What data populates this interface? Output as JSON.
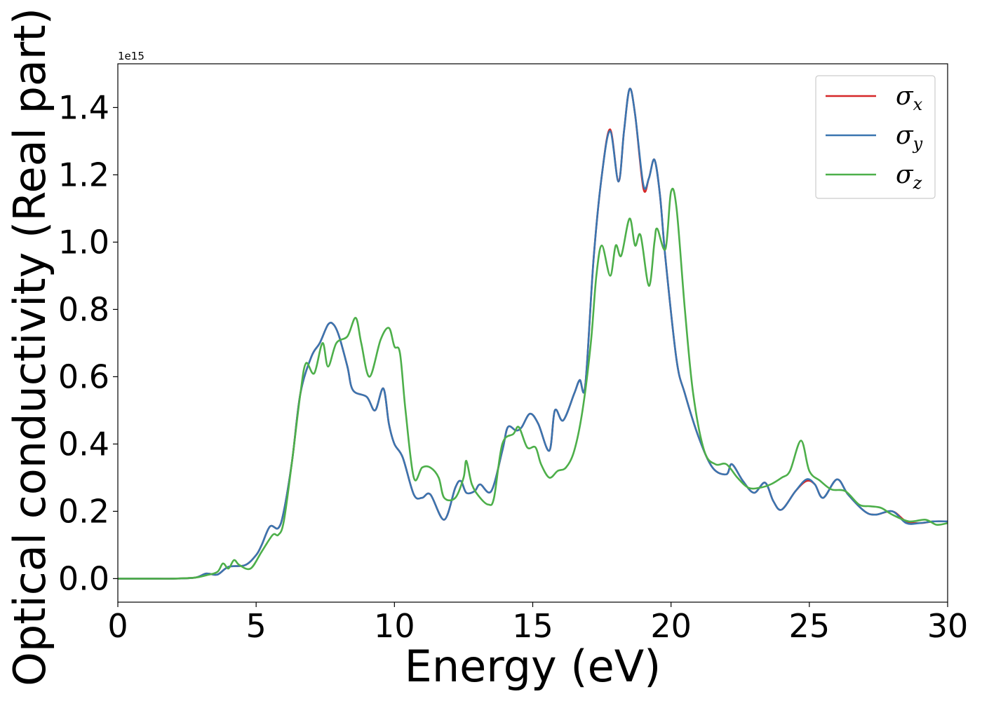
{
  "chart_data": {
    "type": "line",
    "title": "",
    "xlabel": "Energy (eV)",
    "ylabel": "Optical conductivity (Real part)",
    "y_offset_label": "1e15",
    "xlim": [
      0,
      30
    ],
    "ylim": [
      -0.07,
      1.53
    ],
    "x_ticks": [
      0,
      5,
      10,
      15,
      20,
      25,
      30
    ],
    "x_tick_labels": [
      "0",
      "5",
      "10",
      "15",
      "20",
      "25",
      "30"
    ],
    "y_ticks": [
      0.0,
      0.2,
      0.4,
      0.6,
      0.8,
      1.0,
      1.2,
      1.4
    ],
    "y_tick_labels": [
      "0.0",
      "0.2",
      "0.4",
      "0.6",
      "0.8",
      "1.0",
      "1.2",
      "1.4"
    ],
    "grid": false,
    "legend_position": "top-right",
    "series": [
      {
        "name": "σx",
        "symbol": "σ",
        "subscript": "x",
        "color": "#d62728",
        "points": [
          [
            0,
            0
          ],
          [
            1,
            0
          ],
          [
            2,
            0
          ],
          [
            2.8,
            0.003
          ],
          [
            3.2,
            0.015
          ],
          [
            3.6,
            0.012
          ],
          [
            4.0,
            0.035
          ],
          [
            4.6,
            0.04
          ],
          [
            5.0,
            0.07
          ],
          [
            5.2,
            0.1
          ],
          [
            5.5,
            0.155
          ],
          [
            5.8,
            0.15
          ],
          [
            6.0,
            0.2
          ],
          [
            6.3,
            0.35
          ],
          [
            6.6,
            0.55
          ],
          [
            7.0,
            0.66
          ],
          [
            7.3,
            0.7
          ],
          [
            7.6,
            0.755
          ],
          [
            7.8,
            0.755
          ],
          [
            8.0,
            0.72
          ],
          [
            8.3,
            0.63
          ],
          [
            8.5,
            0.56
          ],
          [
            9.0,
            0.54
          ],
          [
            9.3,
            0.5
          ],
          [
            9.6,
            0.565
          ],
          [
            9.8,
            0.46
          ],
          [
            10.0,
            0.4
          ],
          [
            10.3,
            0.36
          ],
          [
            10.7,
            0.25
          ],
          [
            11.0,
            0.24
          ],
          [
            11.3,
            0.25
          ],
          [
            11.8,
            0.175
          ],
          [
            12.2,
            0.27
          ],
          [
            12.4,
            0.29
          ],
          [
            12.6,
            0.255
          ],
          [
            12.9,
            0.26
          ],
          [
            13.1,
            0.28
          ],
          [
            13.5,
            0.26
          ],
          [
            13.9,
            0.38
          ],
          [
            14.1,
            0.45
          ],
          [
            14.4,
            0.44
          ],
          [
            14.6,
            0.45
          ],
          [
            14.9,
            0.49
          ],
          [
            15.2,
            0.46
          ],
          [
            15.6,
            0.38
          ],
          [
            15.8,
            0.5
          ],
          [
            16.1,
            0.47
          ],
          [
            16.5,
            0.55
          ],
          [
            16.7,
            0.59
          ],
          [
            16.9,
            0.575
          ],
          [
            17.2,
            0.95
          ],
          [
            17.5,
            1.2
          ],
          [
            17.8,
            1.335
          ],
          [
            18.1,
            1.18
          ],
          [
            18.3,
            1.33
          ],
          [
            18.5,
            1.455
          ],
          [
            18.7,
            1.38
          ],
          [
            19.0,
            1.16
          ],
          [
            19.2,
            1.19
          ],
          [
            19.4,
            1.245
          ],
          [
            19.6,
            1.14
          ],
          [
            19.8,
            0.95
          ],
          [
            20.2,
            0.65
          ],
          [
            20.5,
            0.55
          ],
          [
            21.0,
            0.42
          ],
          [
            21.5,
            0.33
          ],
          [
            22.0,
            0.31
          ],
          [
            22.2,
            0.34
          ],
          [
            22.6,
            0.29
          ],
          [
            23.0,
            0.255
          ],
          [
            23.4,
            0.285
          ],
          [
            23.7,
            0.23
          ],
          [
            24.0,
            0.205
          ],
          [
            24.5,
            0.26
          ],
          [
            24.9,
            0.29
          ],
          [
            25.2,
            0.28
          ],
          [
            25.5,
            0.24
          ],
          [
            26.0,
            0.295
          ],
          [
            26.4,
            0.25
          ],
          [
            27.0,
            0.2
          ],
          [
            27.4,
            0.19
          ],
          [
            28.0,
            0.2
          ],
          [
            28.5,
            0.17
          ],
          [
            29.0,
            0.165
          ],
          [
            29.5,
            0.17
          ],
          [
            30.0,
            0.17
          ]
        ]
      },
      {
        "name": "σy",
        "symbol": "σ",
        "subscript": "y",
        "color": "#3a75b0",
        "points": [
          [
            0,
            0
          ],
          [
            1,
            0
          ],
          [
            2,
            0
          ],
          [
            2.8,
            0.003
          ],
          [
            3.2,
            0.015
          ],
          [
            3.6,
            0.012
          ],
          [
            4.0,
            0.035
          ],
          [
            4.6,
            0.04
          ],
          [
            5.0,
            0.07
          ],
          [
            5.2,
            0.1
          ],
          [
            5.5,
            0.155
          ],
          [
            5.8,
            0.15
          ],
          [
            6.0,
            0.2
          ],
          [
            6.3,
            0.35
          ],
          [
            6.6,
            0.55
          ],
          [
            7.0,
            0.66
          ],
          [
            7.3,
            0.7
          ],
          [
            7.6,
            0.755
          ],
          [
            7.8,
            0.755
          ],
          [
            8.0,
            0.72
          ],
          [
            8.3,
            0.63
          ],
          [
            8.5,
            0.56
          ],
          [
            9.0,
            0.54
          ],
          [
            9.3,
            0.5
          ],
          [
            9.6,
            0.565
          ],
          [
            9.8,
            0.46
          ],
          [
            10.0,
            0.4
          ],
          [
            10.3,
            0.36
          ],
          [
            10.7,
            0.25
          ],
          [
            11.0,
            0.24
          ],
          [
            11.3,
            0.25
          ],
          [
            11.8,
            0.175
          ],
          [
            12.2,
            0.27
          ],
          [
            12.4,
            0.29
          ],
          [
            12.6,
            0.255
          ],
          [
            12.9,
            0.26
          ],
          [
            13.1,
            0.28
          ],
          [
            13.5,
            0.26
          ],
          [
            13.9,
            0.38
          ],
          [
            14.1,
            0.45
          ],
          [
            14.4,
            0.44
          ],
          [
            14.6,
            0.45
          ],
          [
            14.9,
            0.49
          ],
          [
            15.2,
            0.46
          ],
          [
            15.6,
            0.38
          ],
          [
            15.8,
            0.5
          ],
          [
            16.1,
            0.47
          ],
          [
            16.5,
            0.55
          ],
          [
            16.7,
            0.59
          ],
          [
            16.9,
            0.575
          ],
          [
            17.2,
            0.95
          ],
          [
            17.5,
            1.2
          ],
          [
            17.8,
            1.33
          ],
          [
            18.1,
            1.18
          ],
          [
            18.3,
            1.33
          ],
          [
            18.5,
            1.455
          ],
          [
            18.7,
            1.38
          ],
          [
            19.0,
            1.17
          ],
          [
            19.2,
            1.19
          ],
          [
            19.4,
            1.245
          ],
          [
            19.6,
            1.14
          ],
          [
            19.8,
            0.95
          ],
          [
            20.2,
            0.65
          ],
          [
            20.5,
            0.55
          ],
          [
            21.0,
            0.42
          ],
          [
            21.5,
            0.33
          ],
          [
            22.0,
            0.31
          ],
          [
            22.2,
            0.34
          ],
          [
            22.6,
            0.29
          ],
          [
            23.0,
            0.255
          ],
          [
            23.4,
            0.285
          ],
          [
            23.7,
            0.23
          ],
          [
            24.0,
            0.205
          ],
          [
            24.5,
            0.26
          ],
          [
            24.9,
            0.295
          ],
          [
            25.2,
            0.28
          ],
          [
            25.5,
            0.24
          ],
          [
            26.0,
            0.295
          ],
          [
            26.4,
            0.25
          ],
          [
            27.0,
            0.2
          ],
          [
            27.4,
            0.19
          ],
          [
            28.0,
            0.2
          ],
          [
            28.5,
            0.165
          ],
          [
            29.0,
            0.165
          ],
          [
            29.5,
            0.17
          ],
          [
            30.0,
            0.17
          ]
        ]
      },
      {
        "name": "σz",
        "symbol": "σ",
        "subscript": "z",
        "color": "#4daf4a",
        "points": [
          [
            0,
            0
          ],
          [
            1,
            0
          ],
          [
            2,
            0
          ],
          [
            2.8,
            0.003
          ],
          [
            3.2,
            0.01
          ],
          [
            3.6,
            0.02
          ],
          [
            3.8,
            0.045
          ],
          [
            4.0,
            0.03
          ],
          [
            4.2,
            0.055
          ],
          [
            4.4,
            0.04
          ],
          [
            4.8,
            0.03
          ],
          [
            5.2,
            0.08
          ],
          [
            5.6,
            0.13
          ],
          [
            5.8,
            0.13
          ],
          [
            6.0,
            0.17
          ],
          [
            6.3,
            0.35
          ],
          [
            6.6,
            0.55
          ],
          [
            6.8,
            0.64
          ],
          [
            7.1,
            0.61
          ],
          [
            7.4,
            0.7
          ],
          [
            7.6,
            0.63
          ],
          [
            7.9,
            0.7
          ],
          [
            8.3,
            0.72
          ],
          [
            8.6,
            0.775
          ],
          [
            8.8,
            0.7
          ],
          [
            9.1,
            0.6
          ],
          [
            9.5,
            0.71
          ],
          [
            9.8,
            0.745
          ],
          [
            10.0,
            0.69
          ],
          [
            10.2,
            0.67
          ],
          [
            10.4,
            0.5
          ],
          [
            10.7,
            0.3
          ],
          [
            11.0,
            0.33
          ],
          [
            11.3,
            0.33
          ],
          [
            11.6,
            0.3
          ],
          [
            11.8,
            0.24
          ],
          [
            12.2,
            0.24
          ],
          [
            12.5,
            0.3
          ],
          [
            12.6,
            0.35
          ],
          [
            12.8,
            0.28
          ],
          [
            13.1,
            0.24
          ],
          [
            13.4,
            0.22
          ],
          [
            13.6,
            0.24
          ],
          [
            13.9,
            0.4
          ],
          [
            14.3,
            0.43
          ],
          [
            14.5,
            0.45
          ],
          [
            14.8,
            0.39
          ],
          [
            15.1,
            0.39
          ],
          [
            15.3,
            0.34
          ],
          [
            15.6,
            0.3
          ],
          [
            15.9,
            0.32
          ],
          [
            16.2,
            0.33
          ],
          [
            16.5,
            0.38
          ],
          [
            16.8,
            0.5
          ],
          [
            17.1,
            0.7
          ],
          [
            17.3,
            0.9
          ],
          [
            17.5,
            0.99
          ],
          [
            17.8,
            0.9
          ],
          [
            18.0,
            0.99
          ],
          [
            18.2,
            0.96
          ],
          [
            18.5,
            1.07
          ],
          [
            18.7,
            0.99
          ],
          [
            18.9,
            1.02
          ],
          [
            19.2,
            0.87
          ],
          [
            19.4,
            1.0
          ],
          [
            19.5,
            1.04
          ],
          [
            19.8,
            0.98
          ],
          [
            20.0,
            1.15
          ],
          [
            20.2,
            1.1
          ],
          [
            20.5,
            0.8
          ],
          [
            20.8,
            0.55
          ],
          [
            21.2,
            0.38
          ],
          [
            21.6,
            0.34
          ],
          [
            22.0,
            0.34
          ],
          [
            22.4,
            0.3
          ],
          [
            22.8,
            0.27
          ],
          [
            23.2,
            0.27
          ],
          [
            23.6,
            0.28
          ],
          [
            24.0,
            0.3
          ],
          [
            24.3,
            0.32
          ],
          [
            24.7,
            0.41
          ],
          [
            25.0,
            0.32
          ],
          [
            25.4,
            0.29
          ],
          [
            25.8,
            0.265
          ],
          [
            26.3,
            0.26
          ],
          [
            26.8,
            0.22
          ],
          [
            27.2,
            0.215
          ],
          [
            27.6,
            0.21
          ],
          [
            28.0,
            0.19
          ],
          [
            28.6,
            0.17
          ],
          [
            29.2,
            0.175
          ],
          [
            29.6,
            0.16
          ],
          [
            30.0,
            0.165
          ]
        ]
      }
    ]
  }
}
